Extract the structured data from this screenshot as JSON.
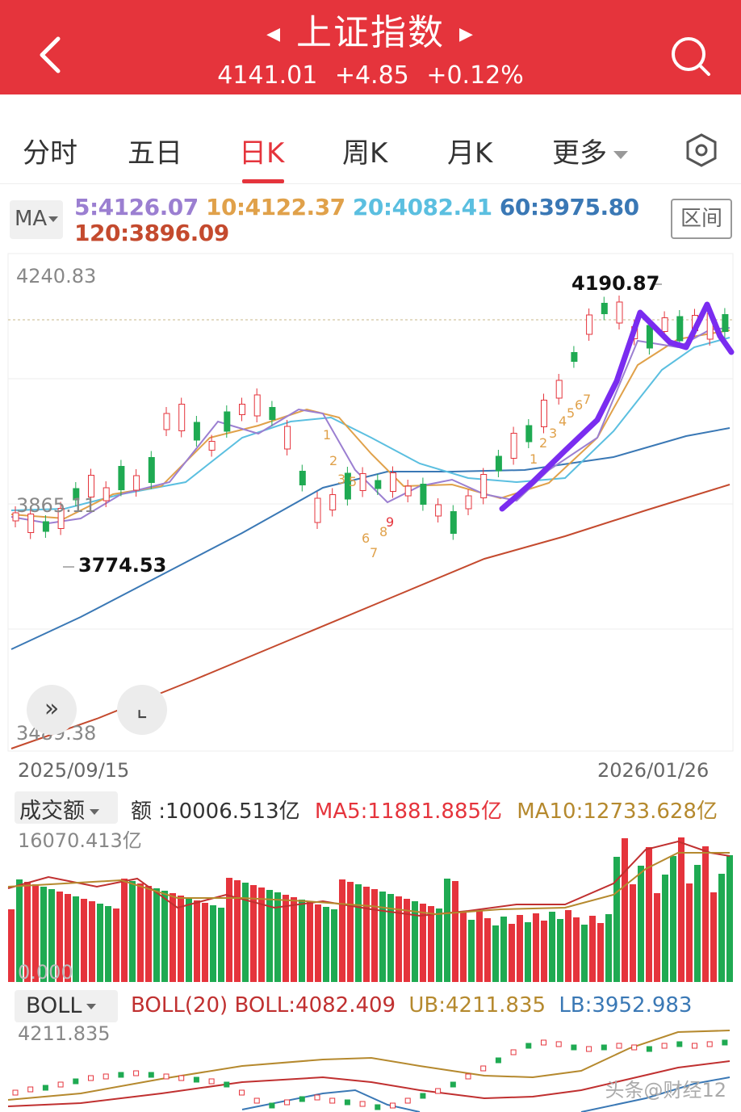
{
  "header": {
    "title": "上证指数",
    "price": "4141.01",
    "change": "+4.85",
    "change_pct": "+0.12%",
    "back_icon": "chevron-left-icon",
    "search_icon": "search-icon",
    "bg_color": "#e5343c"
  },
  "tabs": [
    {
      "label": "分时",
      "active": false
    },
    {
      "label": "五日",
      "active": false
    },
    {
      "label": "日K",
      "active": true
    },
    {
      "label": "周K",
      "active": false
    },
    {
      "label": "月K",
      "active": false
    },
    {
      "label": "更多",
      "active": false
    }
  ],
  "ma": {
    "selector": "MA",
    "ma5": "5:4126.07",
    "ma10": "10:4122.37",
    "ma20": "20:4082.41",
    "ma60": "60:3975.80",
    "ma120": "120:3896.09",
    "range_button": "区间",
    "colors": {
      "ma5": "#9b7fd1",
      "ma10": "#e0a14a",
      "ma20": "#5bbfe0",
      "ma60": "#3a78b5",
      "ma120": "#c44a2e"
    }
  },
  "kline": {
    "y_max_label": "4240.83",
    "y_mid_label": "3865.11",
    "y_min_label": "3489.38",
    "high_label": "4190.87",
    "low_label": "3774.53",
    "start_date": "2025/09/15",
    "end_date": "2026/01/26",
    "nine_turn_down": [
      "1",
      "2",
      "3",
      "5",
      "6",
      "7",
      "8",
      "9"
    ],
    "nine_turn_up": [
      "1",
      "2",
      "3",
      "4",
      "5",
      "6",
      "7"
    ]
  },
  "volume": {
    "selector": "成交额",
    "amount": "额 :10006.513亿",
    "ma5": "MA5:11881.885亿",
    "ma10": "MA10:12733.628亿",
    "max_label": "16070.413亿",
    "zero_label": "0.000"
  },
  "boll": {
    "selector": "BOLL",
    "params": "BOLL(20)",
    "mid": "BOLL:4082.409",
    "ub": "UB:4211.835",
    "lb": "LB:3952.983",
    "top_label": "4211.835"
  },
  "watermark": "头条@财经12"
}
